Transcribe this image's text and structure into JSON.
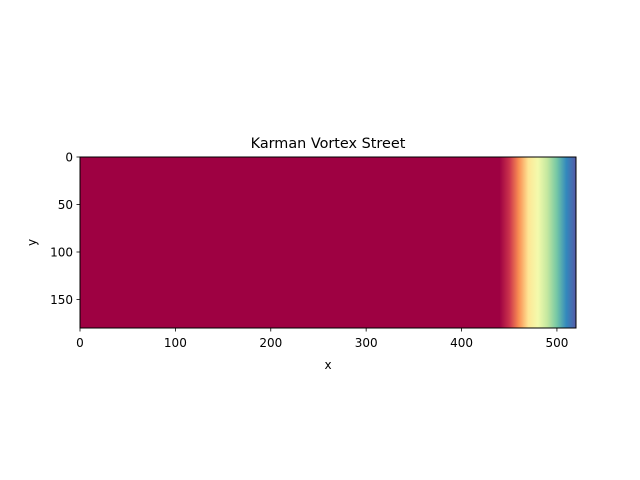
{
  "chart_data": {
    "type": "heatmap",
    "title": "Karman Vortex Street",
    "xlabel": "x",
    "ylabel": "y",
    "xlim": [
      0,
      520
    ],
    "ylim": [
      180,
      0
    ],
    "x_ticks": [
      0,
      100,
      200,
      300,
      400,
      500
    ],
    "y_ticks": [
      0,
      50,
      100,
      150
    ],
    "colormap": "Spectral",
    "grid": false,
    "colorbar": false,
    "field_profile": {
      "description_axis": "x",
      "x": [
        0,
        440,
        450,
        460,
        470,
        480,
        490,
        500,
        510,
        520
      ],
      "value": [
        0.0,
        0.0,
        0.08,
        0.25,
        0.42,
        0.55,
        0.66,
        0.78,
        0.9,
        0.98
      ]
    },
    "colors": {
      "spectral": [
        "#9e0142",
        "#d53e4f",
        "#f46d43",
        "#fdae61",
        "#fee08b",
        "#ffffbf",
        "#e6f598",
        "#abdda4",
        "#66c2a5",
        "#3288bd",
        "#5e4fa2"
      ]
    }
  }
}
